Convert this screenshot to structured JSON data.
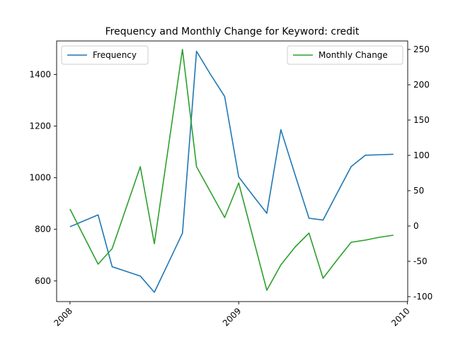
{
  "chart_data": {
    "type": "line",
    "title": "Frequency and Monthly Change for Keyword: credit",
    "x_dates": [
      "2008-01",
      "2008-02",
      "2008-03",
      "2008-04",
      "2008-05",
      "2008-06",
      "2008-07",
      "2008-08",
      "2008-09",
      "2008-10",
      "2008-11",
      "2008-12",
      "2009-01",
      "2009-02",
      "2009-03",
      "2009-04",
      "2009-05",
      "2009-06",
      "2009-07",
      "2009-08",
      "2009-09",
      "2009-10",
      "2009-11",
      "2009-12"
    ],
    "x_ticks": [
      "2008",
      "2009",
      "2010"
    ],
    "x_tick_dates": [
      "2008-01",
      "2009-01",
      "2010-01"
    ],
    "left_axis": {
      "ylim": [
        520,
        1530
      ],
      "ticks": [
        600,
        800,
        1000,
        1200,
        1400
      ]
    },
    "right_axis": {
      "ylim": [
        -107,
        262
      ],
      "ticks": [
        -100,
        -50,
        0,
        50,
        100,
        150,
        200,
        250
      ]
    },
    "series": [
      {
        "name": "Frequency",
        "axis": "left",
        "color": "#1f77b4",
        "values": [
          810,
          833,
          856,
          655,
          637,
          619,
          556,
          670,
          785,
          1490,
          1400,
          1315,
          1003,
          932,
          862,
          1186,
          1013,
          843,
          836,
          940,
          1043,
          1087,
          1089,
          1091
        ],
        "legend_location": "upper left"
      },
      {
        "name": "Monthly Change",
        "axis": "right",
        "color": "#2ca02c",
        "values": [
          24,
          -15,
          -54,
          -32,
          26,
          84,
          -25,
          112,
          250,
          84,
          48,
          12,
          61,
          -15,
          -91,
          -55,
          -30,
          -10,
          -74,
          -48,
          -23,
          -20,
          -16,
          -13
        ],
        "legend_location": "upper right"
      }
    ]
  }
}
